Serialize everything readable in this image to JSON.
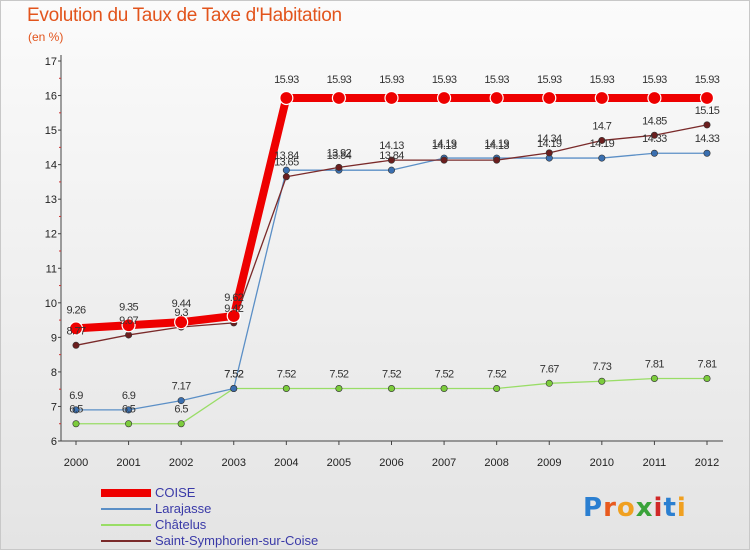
{
  "title": "Evolution du Taux de Taxe d'Habitation",
  "subtitle": "(en %)",
  "brand": "Proxiti",
  "chart_data": {
    "type": "line",
    "title": "Evolution du Taux de Taxe d'Habitation",
    "subtitle": "(en %)",
    "categories": [
      "2000",
      "2001",
      "2002",
      "2003",
      "2004",
      "2005",
      "2006",
      "2007",
      "2008",
      "2009",
      "2010",
      "2011",
      "2012"
    ],
    "y_ticks": [
      "6",
      "7",
      "8",
      "9",
      "10",
      "11",
      "12",
      "13",
      "14",
      "15",
      "16",
      "17"
    ],
    "ylim": [
      6,
      17
    ],
    "grid": false,
    "legend_position": "bottom-left",
    "series": [
      {
        "name": "COISE",
        "color": "#ee0000",
        "values": [
          9.26,
          9.35,
          9.44,
          9.62,
          15.93,
          15.93,
          15.93,
          15.93,
          15.93,
          15.93,
          15.93,
          15.93,
          15.93
        ],
        "labels": [
          "9.26",
          "9.35",
          "9.44",
          "9.62",
          "15.93",
          "15.93",
          "15.93",
          "15.93",
          "15.93",
          "15.93",
          "15.93",
          "15.93",
          "15.93"
        ]
      },
      {
        "name": "Larajasse",
        "color": "#5b8fc6",
        "values": [
          6.9,
          6.9,
          7.17,
          7.52,
          13.84,
          13.84,
          13.84,
          14.19,
          14.19,
          14.19,
          14.19,
          14.33,
          14.33
        ],
        "labels": [
          "6.9",
          "6.9",
          "7.17",
          "7.52",
          "13.84",
          "13.84",
          "13.84",
          "14.19",
          "14.19",
          "14.19",
          "14.19",
          "14.33",
          "14.33"
        ]
      },
      {
        "name": "Châtelus",
        "color": "#99dd66",
        "values": [
          6.5,
          6.5,
          6.5,
          7.52,
          7.52,
          7.52,
          7.52,
          7.52,
          7.52,
          7.67,
          7.73,
          7.81,
          7.81
        ],
        "labels": [
          "6.5",
          "6.5",
          "6.5",
          "7.52",
          "7.52",
          "7.52",
          "7.52",
          "7.52",
          "7.52",
          "7.67",
          "7.73",
          "7.81",
          "7.81"
        ]
      },
      {
        "name": "Saint-Symphorien-sur-Coise",
        "color": "#7a2a2a",
        "values": [
          8.77,
          9.07,
          9.3,
          9.42,
          13.65,
          13.92,
          14.13,
          14.13,
          14.13,
          14.34,
          14.7,
          14.85,
          15.15
        ],
        "labels": [
          "8.77",
          "9.07",
          "9.3",
          "9.42",
          "13.65",
          "13.92",
          "14.13",
          "14.13",
          "14.13",
          "14.34",
          "14.7",
          "14.85",
          "15.15"
        ]
      }
    ]
  }
}
